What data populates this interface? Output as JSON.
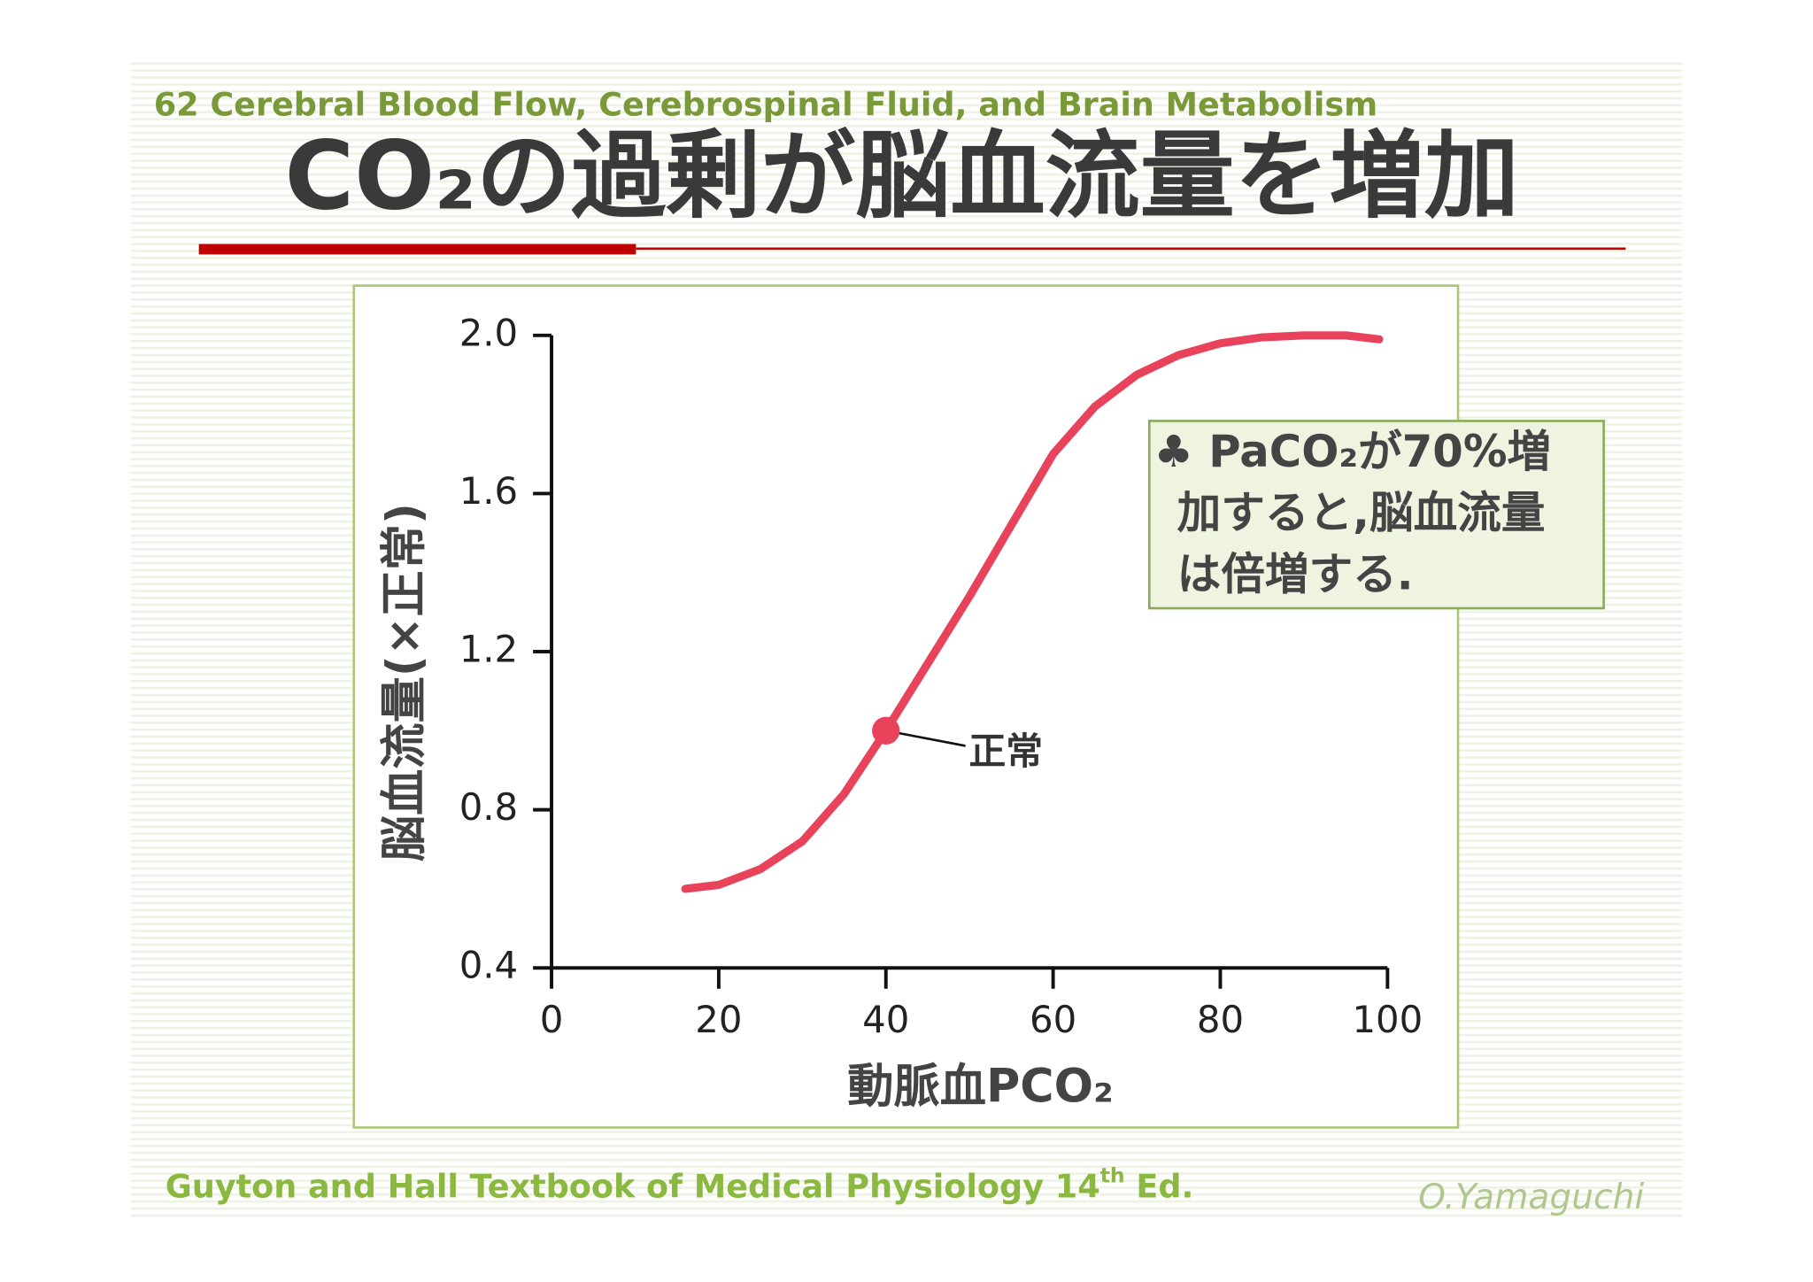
{
  "header": {
    "subtitle": "62 Cerebral Blood Flow, Cerebrospinal Fluid, and Brain Metabolism",
    "title": "CO₂の過剰が脳血流量を増加"
  },
  "chart_data": {
    "type": "line",
    "x_label": "動脈血PCO₂",
    "y_label": "脳血流量(×正常)",
    "series": [
      {
        "name": "脳血流量",
        "color": "#e8435a",
        "x": [
          16,
          20,
          25,
          30,
          35,
          40,
          45,
          50,
          55,
          60,
          65,
          70,
          75,
          80,
          85,
          90,
          95,
          99
        ],
        "values": [
          0.6,
          0.61,
          0.65,
          0.72,
          0.84,
          1.0,
          1.17,
          1.34,
          1.52,
          1.7,
          1.82,
          1.9,
          1.95,
          1.98,
          1.995,
          2.0,
          2.0,
          1.99
        ]
      }
    ],
    "xlim": [
      0,
      100
    ],
    "xticks": [
      0,
      20,
      40,
      60,
      80,
      100
    ],
    "ylim": [
      0.4,
      2.0
    ],
    "yticks": [
      0.4,
      0.8,
      1.2,
      1.6,
      {
        "value": 2,
        "label": "2.0"
      }
    ],
    "annotations": [
      {
        "text": "正常",
        "x": 40,
        "y": 1.0
      }
    ],
    "callout": [
      "♣ PaCO₂が70%増",
      "加すると,脳血流量",
      "は倍増する."
    ]
  },
  "footer": {
    "reference": {
      "text": "Guyton and Hall Textbook of Medical Physiology 14",
      "sup": "th",
      "suffix": " Ed."
    },
    "author": "O.Yamaguchi"
  }
}
